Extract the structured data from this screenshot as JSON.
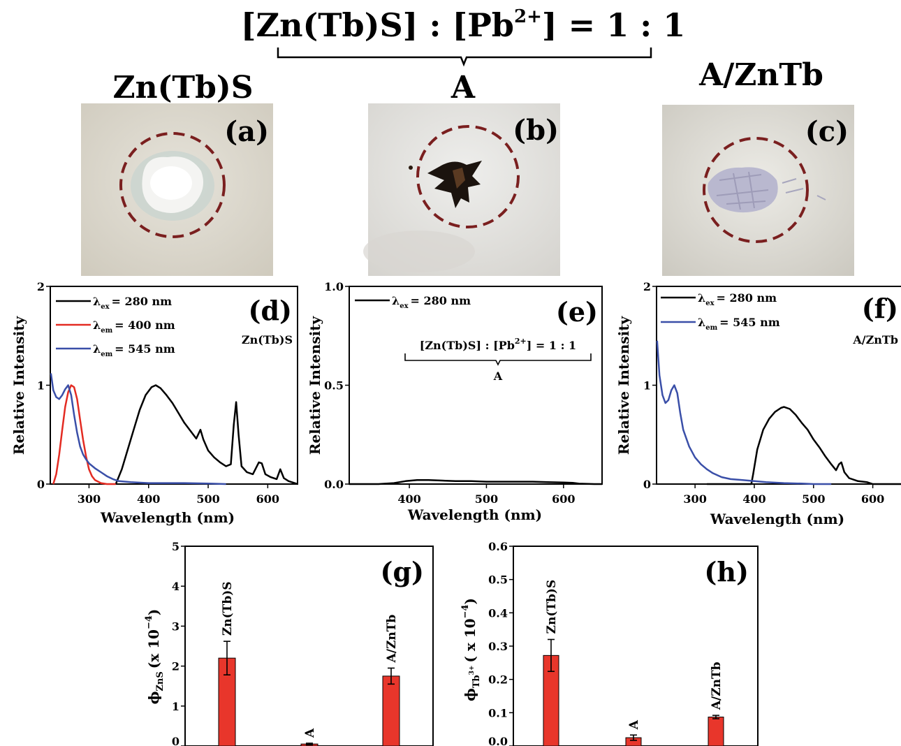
{
  "header": {
    "title_pre": "[Zn(Tb)S] : [Pb",
    "title_sup": "2+",
    "title_post": "] = 1 : 1",
    "col_a": "Zn(Tb)S",
    "col_b": "A",
    "col_c": "A/ZnTb"
  },
  "photos": [
    {
      "letter": "(a)",
      "description_color": "#ffffff",
      "ring_color": "#7a1f1f"
    },
    {
      "letter": "(b)",
      "description_color": "#000000",
      "ring_color": "#7a1f1f"
    },
    {
      "letter": "(c)",
      "description_color": "#b8b8d0",
      "ring_color": "#7a1f1f"
    }
  ],
  "colors": {
    "black": "#000000",
    "red": "#e32b22",
    "blue": "#3a4fa8",
    "bar": "#e8362b"
  },
  "chart_data": [
    {
      "panel": "(d)",
      "type": "line",
      "inset_label": "Zn(Tb)S",
      "xlabel": "Wavelength (nm)",
      "ylabel": "Relative Intensity",
      "xlim": [
        235,
        650
      ],
      "ylim": [
        0,
        2
      ],
      "xticks": [
        "300",
        "400",
        "500",
        "600"
      ],
      "yticks": [
        "0",
        "1",
        "2"
      ],
      "series": [
        {
          "name": "λex = 280 nm",
          "sym": "λ",
          "subscript": "ex",
          "rest": "= 280 nm",
          "color": "#000000",
          "x": [
            345,
            355,
            365,
            375,
            385,
            395,
            405,
            412,
            420,
            430,
            440,
            450,
            460,
            470,
            480,
            487,
            492,
            500,
            510,
            520,
            530,
            538,
            543,
            547,
            551,
            556,
            565,
            575,
            585,
            590,
            596,
            605,
            615,
            621,
            627,
            635,
            645,
            650
          ],
          "y": [
            0.0,
            0.15,
            0.35,
            0.55,
            0.75,
            0.9,
            0.98,
            1.0,
            0.97,
            0.9,
            0.82,
            0.72,
            0.62,
            0.54,
            0.46,
            0.55,
            0.45,
            0.34,
            0.27,
            0.22,
            0.18,
            0.2,
            0.6,
            0.83,
            0.5,
            0.18,
            0.12,
            0.1,
            0.22,
            0.21,
            0.1,
            0.07,
            0.05,
            0.15,
            0.06,
            0.03,
            0.01,
            0.0
          ]
        },
        {
          "name": "λem = 400 nm",
          "sym": "λ",
          "subscript": "em",
          "rest": "= 400 nm",
          "color": "#e32b22",
          "x": [
            240,
            245,
            250,
            255,
            260,
            265,
            270,
            275,
            280,
            285,
            290,
            295,
            300,
            305,
            310,
            320,
            330,
            345
          ],
          "y": [
            0.0,
            0.1,
            0.3,
            0.55,
            0.78,
            0.93,
            1.0,
            0.98,
            0.86,
            0.65,
            0.45,
            0.28,
            0.15,
            0.08,
            0.04,
            0.01,
            0.0,
            0.0
          ]
        },
        {
          "name": "λem = 545 nm",
          "sym": "λ",
          "subscript": "em",
          "rest": "= 545 nm",
          "color": "#3a4fa8",
          "x": [
            236,
            240,
            245,
            250,
            255,
            260,
            265,
            270,
            275,
            280,
            285,
            290,
            295,
            300,
            310,
            320,
            330,
            340,
            350,
            370,
            400,
            430,
            460,
            500,
            530
          ],
          "y": [
            1.12,
            0.95,
            0.88,
            0.86,
            0.9,
            0.96,
            1.0,
            0.9,
            0.7,
            0.52,
            0.38,
            0.3,
            0.25,
            0.21,
            0.16,
            0.12,
            0.08,
            0.05,
            0.03,
            0.02,
            0.01,
            0.01,
            0.01,
            0.005,
            0.0
          ]
        }
      ]
    },
    {
      "panel": "(e)",
      "type": "line",
      "xlabel": "Wavelength (nm)",
      "ylabel": "Relative Intensity",
      "xlim": [
        322,
        650
      ],
      "ylim": [
        0,
        1
      ],
      "xticks": [
        "400",
        "500",
        "600"
      ],
      "yticks": [
        "0.0",
        "0.5",
        "1.0"
      ],
      "inset_bracket_pre": "[Zn(Tb)S] : [Pb",
      "inset_bracket_sup": "2+",
      "inset_bracket_post": "] = 1 : 1",
      "inset_bracket_label": "A",
      "series": [
        {
          "name": "λex = 280 nm",
          "sym": "λ",
          "subscript": "ex",
          "rest": "= 280 nm",
          "color": "#000000",
          "x": [
            322,
            360,
            380,
            395,
            410,
            425,
            440,
            460,
            480,
            500,
            520,
            540,
            560,
            580,
            600,
            612,
            620,
            640,
            650
          ],
          "y": [
            0.0,
            0.0,
            0.005,
            0.015,
            0.02,
            0.02,
            0.018,
            0.015,
            0.015,
            0.012,
            0.012,
            0.012,
            0.012,
            0.01,
            0.008,
            0.006,
            0.002,
            0.0,
            0.0
          ]
        }
      ]
    },
    {
      "panel": "(f)",
      "type": "line",
      "inset_label": "A/ZnTb",
      "xlabel": "Wavelength (nm)",
      "ylabel": "Relative Intensity",
      "xlim": [
        235,
        650
      ],
      "ylim": [
        0,
        2
      ],
      "xticks": [
        "300",
        "400",
        "500",
        "600"
      ],
      "yticks": [
        "0",
        "1",
        "2"
      ],
      "series": [
        {
          "name": "λex = 280 nm",
          "sym": "λ",
          "subscript": "ex",
          "rest": "= 280 nm",
          "color": "#000000",
          "x": [
            320,
            395,
            398,
            405,
            415,
            425,
            435,
            445,
            450,
            460,
            470,
            480,
            490,
            500,
            510,
            520,
            530,
            538,
            543,
            547,
            552,
            560,
            575,
            590,
            600,
            620,
            650
          ],
          "y": [
            0.0,
            0.0,
            0.1,
            0.35,
            0.55,
            0.66,
            0.73,
            0.77,
            0.78,
            0.76,
            0.7,
            0.62,
            0.55,
            0.45,
            0.37,
            0.28,
            0.2,
            0.14,
            0.2,
            0.22,
            0.12,
            0.06,
            0.03,
            0.02,
            0.0,
            0.0,
            0.0
          ]
        },
        {
          "name": "λem = 545 nm",
          "sym": "λ",
          "subscript": "em",
          "rest": "= 545 nm",
          "color": "#3a4fa8",
          "x": [
            236,
            240,
            245,
            250,
            255,
            260,
            265,
            270,
            275,
            280,
            290,
            300,
            310,
            320,
            330,
            345,
            360,
            380,
            400,
            420,
            450,
            480,
            500,
            530
          ],
          "y": [
            1.45,
            1.1,
            0.9,
            0.82,
            0.85,
            0.95,
            1.0,
            0.92,
            0.72,
            0.55,
            0.38,
            0.27,
            0.2,
            0.15,
            0.11,
            0.07,
            0.05,
            0.04,
            0.03,
            0.02,
            0.01,
            0.005,
            0.0,
            0.0
          ]
        }
      ]
    },
    {
      "panel": "(g)",
      "type": "bar",
      "ylabel_sym": "ϕ",
      "ylabel_sub": "ZnS",
      "ylabel_rest": "(x 10",
      "ylabel_exp": "−4",
      "ylabel_close": ")",
      "ylim": [
        0,
        5
      ],
      "yticks": [
        "0",
        "1",
        "2",
        "3",
        "4",
        "5"
      ],
      "categories": [
        "Zn(Tb)S",
        "A",
        "A/ZnTb"
      ],
      "values": [
        2.2,
        0.05,
        1.75
      ],
      "errors": [
        0.42,
        0.02,
        0.2
      ]
    },
    {
      "panel": "(h)",
      "type": "bar",
      "ylabel_sym": "ϕ",
      "ylabel_sub": "Tb",
      "ylabel_subsup": "3+",
      "ylabel_rest": "( x 10",
      "ylabel_exp": "−4",
      "ylabel_close": ")",
      "ylim": [
        0,
        0.6
      ],
      "yticks": [
        "0.0",
        "0.1",
        "0.2",
        "0.3",
        "0.4",
        "0.5",
        "0.6"
      ],
      "categories": [
        "Zn(Tb)S",
        "A",
        "A/ZnTb"
      ],
      "values": [
        0.272,
        0.025,
        0.087
      ],
      "errors": [
        0.048,
        0.008,
        0.005
      ]
    }
  ]
}
